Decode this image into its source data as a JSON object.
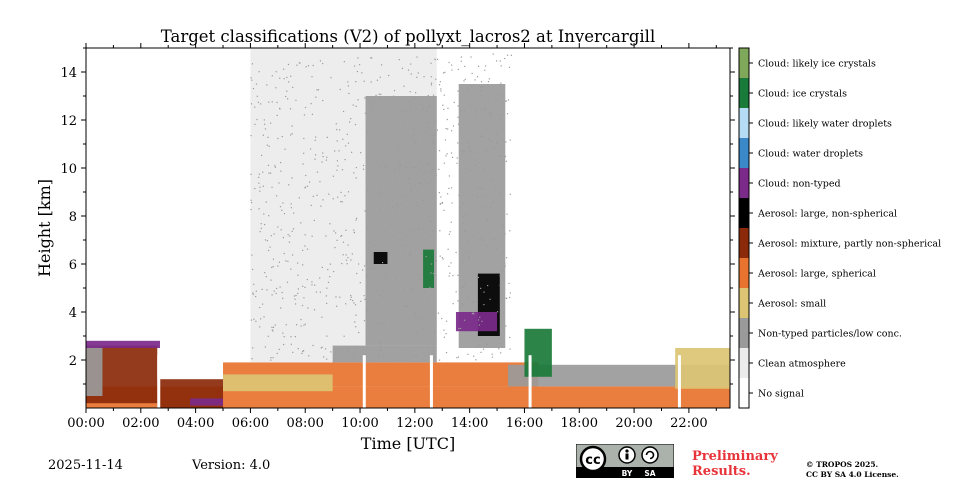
{
  "chart_data": {
    "type": "heatmap",
    "title": "Target classifications (V2) of pollyxt_lacros2 at Invercargill",
    "xlabel": "Time [UTC]",
    "ylabel": "Height [km]",
    "xlim": [
      0,
      23.5
    ],
    "ylim": [
      0,
      15
    ],
    "x_tick_values": [
      0,
      2,
      4,
      6,
      8,
      10,
      12,
      14,
      16,
      18,
      20,
      22
    ],
    "x_tick_labels": [
      "00:00",
      "02:00",
      "04:00",
      "06:00",
      "08:00",
      "10:00",
      "12:00",
      "14:00",
      "16:00",
      "18:00",
      "20:00",
      "22:00"
    ],
    "y_tick_values": [
      2,
      4,
      6,
      8,
      10,
      12,
      14
    ],
    "y_tick_labels": [
      "2",
      "4",
      "6",
      "8",
      "10",
      "12",
      "14"
    ],
    "legend_position": "right",
    "classes": [
      {
        "label": "Cloud: likely ice crystals",
        "color": "#7fa85a"
      },
      {
        "label": "Cloud: ice crystals",
        "color": "#1a7a3a"
      },
      {
        "label": "Cloud: likely water droplets",
        "color": "#b6dcf5"
      },
      {
        "label": "Cloud: water droplets",
        "color": "#3a88c8"
      },
      {
        "label": "Cloud: non-typed",
        "color": "#7b2a8a"
      },
      {
        "label": "Aerosol: large, non-spherical",
        "color": "#000000"
      },
      {
        "label": "Aerosol: mixture, partly non-spherical",
        "color": "#8b2a0a"
      },
      {
        "label": "Aerosol: large, spherical",
        "color": "#e8732e"
      },
      {
        "label": "Aerosol: small",
        "color": "#dcc473"
      },
      {
        "label": "Non-typed particles/low conc.",
        "color": "#9a9a9a"
      },
      {
        "label": "Clean atmosphere",
        "color": "#ececec"
      },
      {
        "label": "No signal",
        "color": "#ffffff"
      }
    ],
    "regions": [
      {
        "class": "Aerosol: large, spherical",
        "x": [
          0,
          23.5
        ],
        "y": [
          0,
          0.9
        ]
      },
      {
        "class": "Aerosol: mixture, partly non-spherical",
        "x": [
          0,
          2.6
        ],
        "y": [
          0.2,
          2.6
        ]
      },
      {
        "class": "Aerosol: mixture, partly non-spherical",
        "x": [
          2.6,
          5.0
        ],
        "y": [
          0,
          1.2
        ]
      },
      {
        "class": "Non-typed particles/low conc.",
        "x": [
          0,
          0.6
        ],
        "y": [
          0.5,
          2.6
        ]
      },
      {
        "class": "Cloud: non-typed",
        "x": [
          0,
          2.7
        ],
        "y": [
          2.5,
          2.8
        ]
      },
      {
        "class": "Cloud: non-typed",
        "x": [
          3.8,
          5.0
        ],
        "y": [
          0.1,
          0.4
        ]
      },
      {
        "class": "Aerosol: large, spherical",
        "x": [
          5.0,
          16.5
        ],
        "y": [
          0.9,
          1.9
        ]
      },
      {
        "class": "Aerosol: small",
        "x": [
          5.0,
          9.0
        ],
        "y": [
          0.7,
          1.4
        ]
      },
      {
        "class": "Clean atmosphere",
        "x": [
          6.0,
          12.8
        ],
        "y": [
          1.9,
          15
        ]
      },
      {
        "class": "Non-typed particles/low conc.",
        "x": [
          9.0,
          12.8
        ],
        "y": [
          1.9,
          2.6
        ]
      },
      {
        "class": "Non-typed particles/low conc.",
        "x": [
          10.2,
          12.8
        ],
        "y": [
          2.6,
          13
        ]
      },
      {
        "class": "Non-typed particles/low conc.",
        "x": [
          13.6,
          15.3
        ],
        "y": [
          2.5,
          13.5
        ]
      },
      {
        "class": "Non-typed particles/low conc.",
        "x": [
          15.4,
          23.5
        ],
        "y": [
          0.9,
          1.8
        ]
      },
      {
        "class": "Aerosol: small",
        "x": [
          21.5,
          23.5
        ],
        "y": [
          0.8,
          2.5
        ]
      },
      {
        "class": "Cloud: ice crystals",
        "x": [
          12.3,
          12.7
        ],
        "y": [
          5.0,
          6.6
        ]
      },
      {
        "class": "Aerosol: large, non-spherical",
        "x": [
          10.5,
          11.0
        ],
        "y": [
          6.0,
          6.5
        ]
      },
      {
        "class": "Aerosol: large, non-spherical",
        "x": [
          14.3,
          15.1
        ],
        "y": [
          3.0,
          5.6
        ]
      },
      {
        "class": "Cloud: non-typed",
        "x": [
          13.5,
          15.0
        ],
        "y": [
          3.2,
          4.0
        ]
      },
      {
        "class": "Cloud: ice crystals",
        "x": [
          16.0,
          17.0
        ],
        "y": [
          1.3,
          3.3
        ]
      }
    ],
    "data_gaps_hours": [
      2.6,
      10.1,
      12.55,
      16.15,
      21.6
    ]
  },
  "footer": {
    "date": "2025-11-14",
    "version": "Version: 4.0",
    "preliminary_line1": "Preliminary",
    "preliminary_line2": "Results.",
    "license_line1": "© TROPOS 2025.",
    "license_line2": "CC BY SA 4.0 License.",
    "cc_text": "cc",
    "cc_by": "BY",
    "cc_sa": "SA"
  }
}
